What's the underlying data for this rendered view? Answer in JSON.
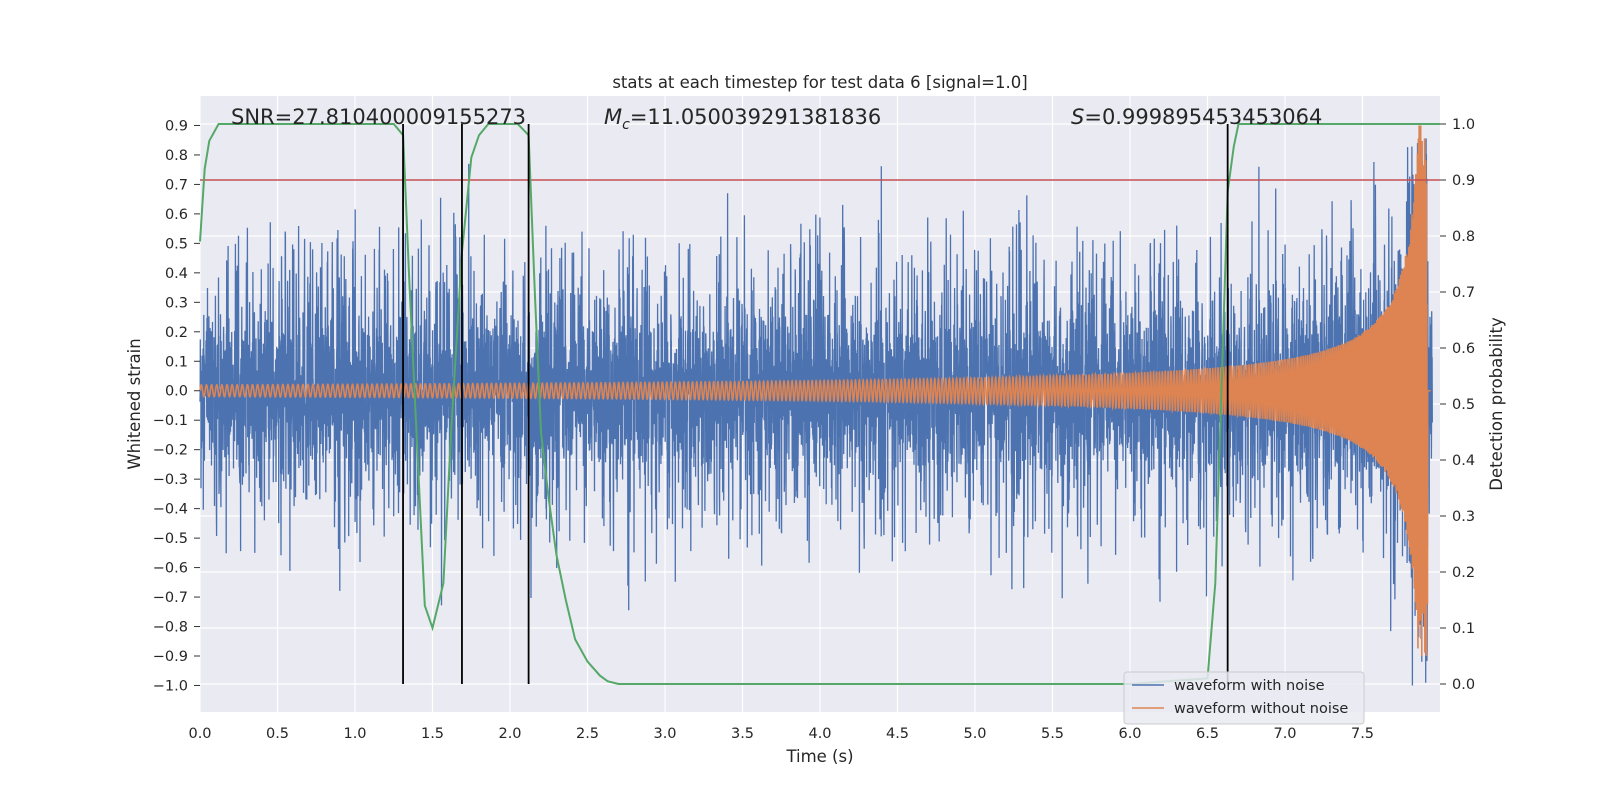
{
  "chart_data": {
    "type": "line",
    "title": "stats at each timestep for test data 6 [signal=1.0]",
    "xlabel": "Time (s)",
    "ylabel_left": "Whitened strain",
    "ylabel_right": "Detection probability",
    "xlim": [
      0.0,
      8.0
    ],
    "ylim_left": [
      -1.09,
      1.0
    ],
    "ylim_right": [
      -0.05,
      1.05
    ],
    "x_ticks": [
      "0.0",
      "0.5",
      "1.0",
      "1.5",
      "2.0",
      "2.5",
      "3.0",
      "3.5",
      "4.0",
      "4.5",
      "5.0",
      "5.5",
      "6.0",
      "6.5",
      "7.0",
      "7.5"
    ],
    "y_left_ticks": [
      "0.9",
      "0.8",
      "0.7",
      "0.6",
      "0.5",
      "0.4",
      "0.3",
      "0.2",
      "0.1",
      "0.0",
      "-0.1",
      "-0.2",
      "-0.3",
      "-0.4",
      "-0.5",
      "-0.6",
      "-0.7",
      "-0.8",
      "-0.9",
      "-1.0"
    ],
    "y_right_ticks": [
      "1.0",
      "0.9",
      "0.8",
      "0.7",
      "0.6",
      "0.5",
      "0.4",
      "0.3",
      "0.2",
      "0.1",
      "0.0"
    ],
    "grid": true,
    "annotations": {
      "snr": "SNR=27.810400009155273",
      "mc_symbol": "M",
      "mc_sub": "c",
      "mc_value": "=11.050039291381836",
      "s_symbol": "S",
      "s_value": "=0.999895453453064"
    },
    "legend": {
      "placement": "lower-right",
      "entries": [
        "waveform with noise",
        "waveform without noise"
      ]
    },
    "colors": {
      "noise": "#4c72b0",
      "clean": "#dd8452",
      "probability": "#55a868",
      "threshold": "#c44e52",
      "markers": "#000000",
      "background": "#eaeaf2",
      "grid": "#ffffff"
    },
    "threshold_probability": 0.9,
    "vertical_markers_s": [
      1.31,
      1.69,
      2.12,
      6.63
    ],
    "series": [
      {
        "name": "waveform with noise",
        "kind": "noisy_strain",
        "t_range": [
          0.0,
          7.95
        ],
        "typical_amplitude": 0.3,
        "peak_values": {
          "max": 0.9,
          "min": -1.0
        }
      },
      {
        "name": "waveform without noise",
        "kind": "chirp",
        "t_range": [
          0.0,
          7.94
        ],
        "start_amplitude": 0.02,
        "peak_amplitude": 0.9,
        "merger_time": 7.92
      },
      {
        "name": "detection probability",
        "axis": "right",
        "x": [
          0.0,
          0.03,
          0.06,
          0.12,
          0.2,
          0.4,
          0.8,
          1.2,
          1.25,
          1.31,
          1.35,
          1.4,
          1.45,
          1.5,
          1.57,
          1.62,
          1.69,
          1.75,
          1.8,
          1.86,
          1.95,
          2.05,
          2.12,
          2.16,
          2.2,
          2.25,
          2.3,
          2.36,
          2.42,
          2.5,
          2.58,
          2.63,
          2.7,
          3.0,
          4.0,
          5.0,
          6.0,
          6.5,
          6.55,
          6.59,
          6.63,
          6.67,
          6.7,
          6.75,
          7.0,
          7.5,
          8.0
        ],
        "y": [
          0.79,
          0.92,
          0.97,
          1.0,
          1.0,
          1.0,
          1.0,
          1.0,
          1.0,
          0.98,
          0.72,
          0.43,
          0.14,
          0.1,
          0.18,
          0.45,
          0.77,
          0.94,
          0.98,
          1.0,
          1.0,
          1.0,
          0.98,
          0.7,
          0.45,
          0.33,
          0.23,
          0.15,
          0.08,
          0.04,
          0.015,
          0.005,
          0.0,
          0.0,
          0.0,
          0.0,
          0.0,
          0.01,
          0.18,
          0.52,
          0.88,
          0.96,
          1.0,
          1.0,
          1.0,
          1.0,
          1.0
        ]
      }
    ]
  }
}
